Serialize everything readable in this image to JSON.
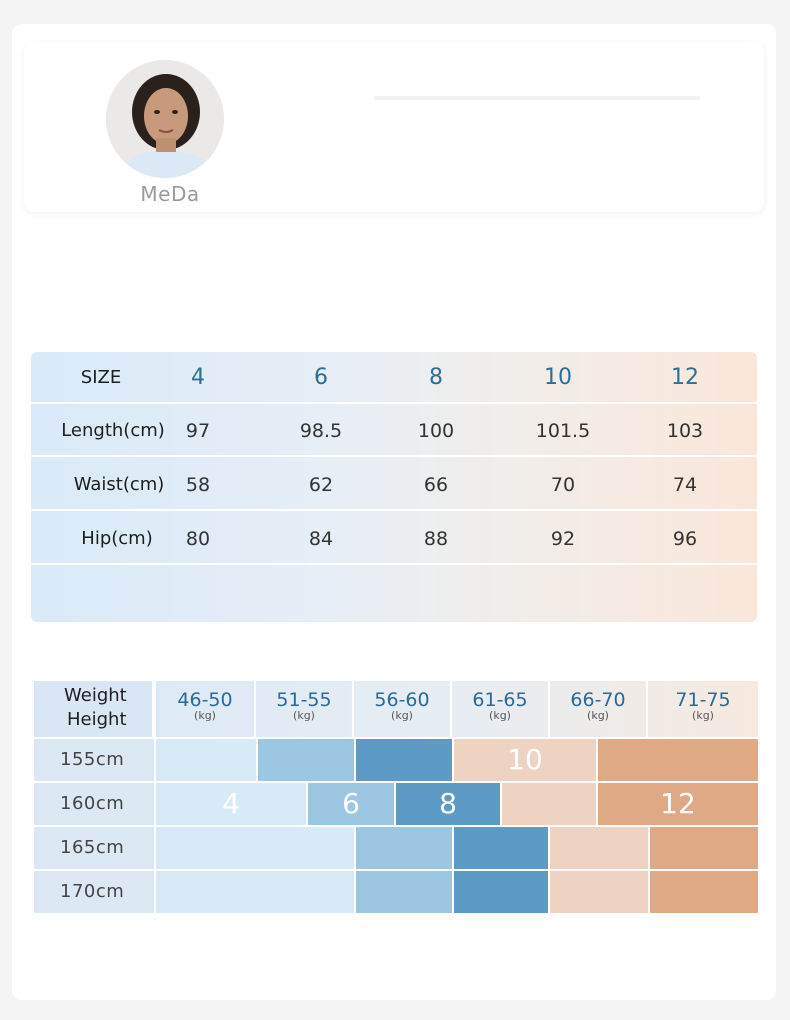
{
  "brand": {
    "name": "MeDa"
  },
  "size_table": {
    "header_label": "SIZE",
    "sizes": [
      "4",
      "6",
      "8",
      "10",
      "12"
    ],
    "rows": [
      {
        "label": "Length(cm)",
        "values": [
          "97",
          "98.5",
          "100",
          "101.5",
          "103"
        ]
      },
      {
        "label": "Waist(cm)",
        "values": [
          "58",
          "62",
          "66",
          "70",
          "74"
        ]
      },
      {
        "label": "Hip(cm)",
        "values": [
          "80",
          "84",
          "88",
          "92",
          "96"
        ]
      }
    ]
  },
  "fit_chart": {
    "corner_weight": "Weight",
    "corner_height": "Height",
    "weight_ranges": [
      "46-50",
      "51-55",
      "56-60",
      "61-65",
      "66-70",
      "71-75"
    ],
    "weight_unit": "(kg)",
    "heights": [
      "155cm",
      "160cm",
      "165cm",
      "170cm"
    ],
    "size_labels": {
      "s4": "4",
      "s6": "6",
      "s8": "8",
      "s10": "10",
      "s12": "12"
    },
    "colors": {
      "size4": "#d7eaf7",
      "size6": "#9cc7e3",
      "size8": "#5d9bc7",
      "size10": "#efd3c2",
      "size12": "#dfa986"
    }
  }
}
